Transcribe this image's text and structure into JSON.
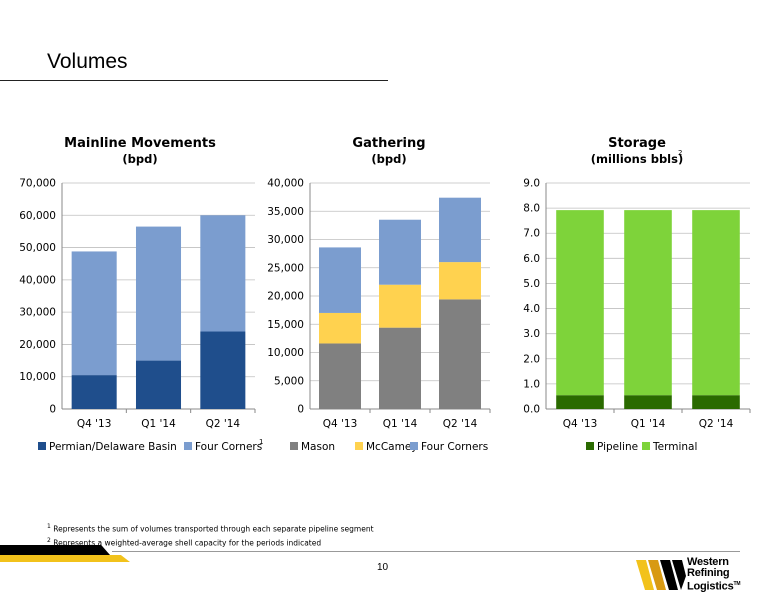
{
  "page": {
    "title": "Volumes",
    "page_number": "10",
    "footnotes": [
      {
        "mark": "1",
        "text": "Represents the sum of volumes transported through each separate pipeline segment"
      },
      {
        "mark": "2",
        "text": "Represents a weighted-average shell capacity for the periods indicated"
      }
    ],
    "logo": {
      "line1": "Western",
      "line2": "Refining",
      "line3": "Logistics",
      "tm": "TM"
    }
  },
  "chart_data": [
    {
      "type": "bar",
      "stacked": true,
      "title": "Mainline Movements",
      "subtitle": "(bpd)",
      "categories": [
        "Q4 '13",
        "Q1 '14",
        "Q2 '14"
      ],
      "series": [
        {
          "name": "Permian/Delaware Basin",
          "color": "#1f4e8c",
          "values": [
            10500,
            15000,
            24000
          ]
        },
        {
          "name": "Four Corners",
          "color": "#7b9dcf",
          "values": [
            38300,
            41500,
            36000
          ],
          "legend_sup": "1"
        }
      ],
      "ylim": [
        0,
        70000
      ],
      "yticks": [
        0,
        10000,
        20000,
        30000,
        40000,
        50000,
        60000,
        70000
      ],
      "ytick_labels": [
        "0",
        "10,000",
        "20,000",
        "30,000",
        "40,000",
        "50,000",
        "60,000",
        "70,000"
      ],
      "grid": true,
      "legend": "bottom"
    },
    {
      "type": "bar",
      "stacked": true,
      "title": "Gathering",
      "subtitle": "(bpd)",
      "categories": [
        "Q4 '13",
        "Q1 '14",
        "Q2 '14"
      ],
      "series": [
        {
          "name": "Mason",
          "color": "#808080",
          "values": [
            11600,
            14400,
            19400
          ]
        },
        {
          "name": "McCamey",
          "color": "#ffd24f",
          "values": [
            5400,
            7600,
            6600
          ]
        },
        {
          "name": "Four Corners",
          "color": "#7b9dcf",
          "values": [
            11600,
            11500,
            11400
          ]
        }
      ],
      "ylim": [
        0,
        40000
      ],
      "yticks": [
        0,
        5000,
        10000,
        15000,
        20000,
        25000,
        30000,
        35000,
        40000
      ],
      "ytick_labels": [
        "0",
        "5,000",
        "10,000",
        "15,000",
        "20,000",
        "25,000",
        "30,000",
        "35,000",
        "40,000"
      ],
      "grid": true,
      "legend": "bottom"
    },
    {
      "type": "bar",
      "stacked": true,
      "title": "Storage",
      "subtitle": "(millions bbls)",
      "title_sup": "2",
      "categories": [
        "Q4 '13",
        "Q1 '14",
        "Q2 '14"
      ],
      "series": [
        {
          "name": "Pipeline",
          "color": "#2a6a00",
          "values": [
            0.55,
            0.55,
            0.55
          ]
        },
        {
          "name": "Terminal",
          "color": "#7ed33a",
          "values": [
            7.37,
            7.37,
            7.37
          ]
        }
      ],
      "ylim": [
        0,
        9
      ],
      "yticks": [
        0,
        1,
        2,
        3,
        4,
        5,
        6,
        7,
        8,
        9
      ],
      "ytick_labels": [
        "0.0",
        "1.0",
        "2.0",
        "3.0",
        "4.0",
        "5.0",
        "6.0",
        "7.0",
        "8.0",
        "9.0"
      ],
      "grid": true,
      "legend": "bottom"
    }
  ]
}
